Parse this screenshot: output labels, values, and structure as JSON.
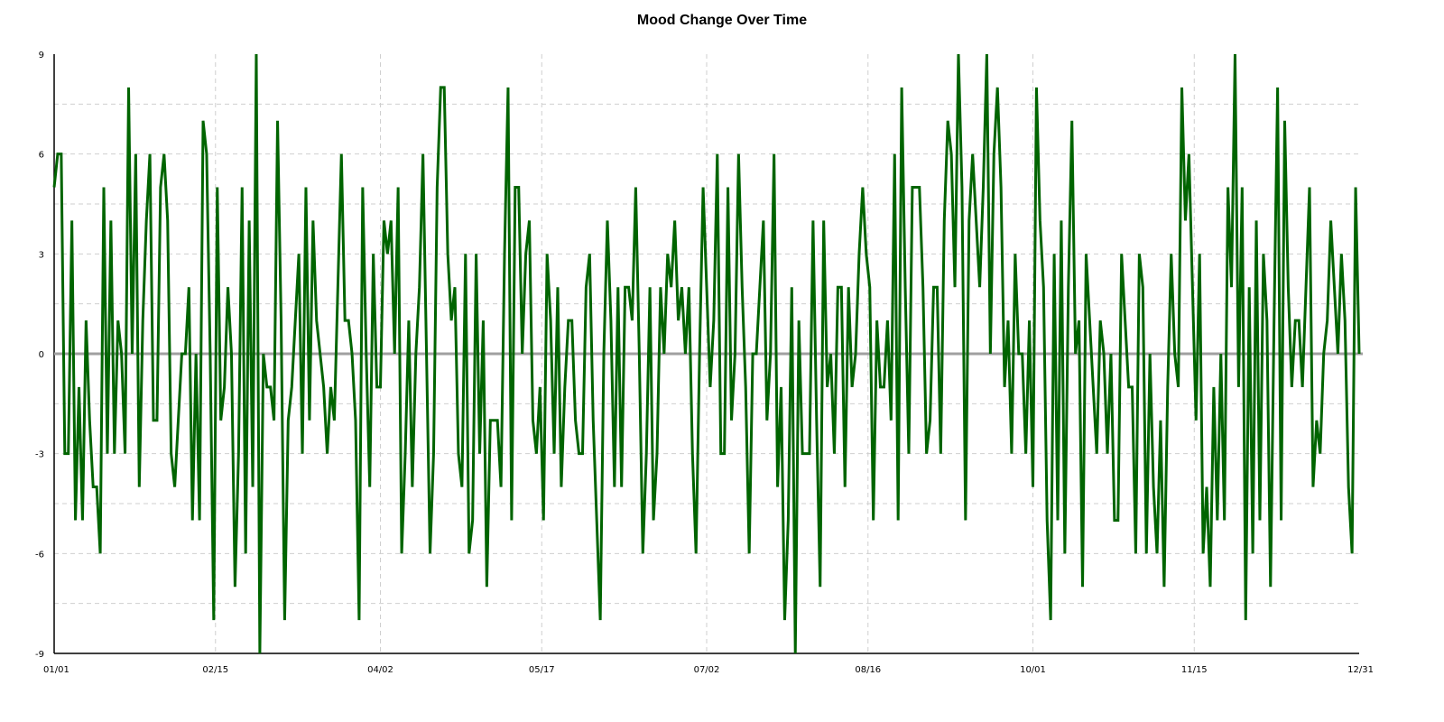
{
  "chart_data": {
    "type": "line",
    "title": "Mood Change Over Time",
    "xlabel": "",
    "ylabel": "",
    "ylim": [
      -9,
      9
    ],
    "y_ticks": [
      -9,
      -6,
      -3,
      0,
      3,
      6,
      9
    ],
    "x_ticks": [
      {
        "label": "01/01",
        "day": 0
      },
      {
        "label": "02/15",
        "day": 45
      },
      {
        "label": "04/02",
        "day": 91
      },
      {
        "label": "05/17",
        "day": 136
      },
      {
        "label": "07/02",
        "day": 182
      },
      {
        "label": "08/16",
        "day": 227
      },
      {
        "label": "10/01",
        "day": 273
      },
      {
        "label": "11/15",
        "day": 318
      },
      {
        "label": "12/31",
        "day": 364
      }
    ],
    "grid": true,
    "zero_line": true,
    "line_color": "#006400",
    "zero_line_color": "#a0a0a0",
    "series": [
      {
        "name": "",
        "values": [
          5,
          6,
          6,
          -3,
          -3,
          4,
          -5,
          -1,
          -5,
          1,
          -2,
          -4,
          -4,
          -6,
          5,
          -3,
          4,
          -3,
          1,
          0,
          -3,
          8,
          0,
          6,
          -4,
          1,
          4,
          6,
          -2,
          -2,
          5,
          6,
          4,
          -3,
          -4,
          -2,
          0,
          0,
          2,
          -5,
          0,
          -5,
          7,
          6,
          0,
          -8,
          5,
          -2,
          -1,
          2,
          0,
          -7,
          -3,
          5,
          -6,
          4,
          -4,
          9,
          -9,
          0,
          -1,
          -1,
          -2,
          7,
          1,
          -8,
          -2,
          -1,
          1,
          3,
          -3,
          5,
          -2,
          4,
          1,
          0,
          -1,
          -3,
          -1,
          -2,
          2,
          6,
          1,
          1,
          0,
          -2,
          -8,
          5,
          0,
          -4,
          3,
          -1,
          -1,
          4,
          3,
          4,
          0,
          5,
          -6,
          -3,
          1,
          -4,
          0,
          2,
          6,
          0,
          -6,
          -3,
          5,
          8,
          8,
          3,
          1,
          2,
          -3,
          -4,
          3,
          -6,
          -5,
          3,
          -3,
          1,
          -7,
          -2,
          -2,
          -2,
          -4,
          3,
          8,
          -5,
          5,
          5,
          0,
          3,
          4,
          -2,
          -3,
          -1,
          -5,
          3,
          1,
          -3,
          2,
          -4,
          -1,
          1,
          1,
          -2,
          -3,
          -3,
          2,
          3,
          -2,
          -5,
          -8,
          0,
          4,
          1,
          -4,
          2,
          -4,
          2,
          2,
          1,
          5,
          0,
          -6,
          -3,
          2,
          -5,
          -3,
          2,
          0,
          3,
          2,
          4,
          1,
          2,
          0,
          2,
          -3,
          -6,
          0,
          5,
          2,
          -1,
          1,
          6,
          -3,
          -3,
          5,
          -2,
          0,
          6,
          2,
          -1,
          -6,
          0,
          0,
          2,
          4,
          -2,
          0,
          6,
          -4,
          -1,
          -8,
          -5,
          2,
          -9,
          1,
          -3,
          -3,
          -3,
          4,
          -2,
          -7,
          4,
          -1,
          0,
          -3,
          2,
          2,
          -4,
          2,
          -1,
          0,
          3,
          5,
          3,
          2,
          -5,
          1,
          -1,
          -1,
          1,
          -2,
          6,
          -5,
          8,
          2,
          -3,
          5,
          5,
          5,
          2,
          -3,
          -2,
          2,
          2,
          -3,
          4,
          7,
          6,
          2,
          9,
          5,
          -5,
          4,
          6,
          4,
          2,
          5,
          9,
          0,
          6,
          8,
          5,
          -1,
          1,
          -3,
          3,
          0,
          0,
          -3,
          1,
          -4,
          8,
          4,
          2,
          -5,
          -8,
          3,
          -5,
          4,
          -6,
          2,
          7,
          0,
          1,
          -7,
          3,
          1,
          -1,
          -3,
          1,
          0,
          -3,
          0,
          -5,
          -5,
          3,
          1,
          -1,
          -1,
          -6,
          3,
          2,
          -6,
          0,
          -4,
          -6,
          -2,
          -7,
          -1,
          3,
          0,
          -1,
          8,
          4,
          6,
          2,
          -2,
          3,
          -6,
          -4,
          -7,
          -1,
          -5,
          0,
          -5,
          5,
          2,
          9,
          -1,
          5,
          -8,
          2,
          -6,
          4,
          -5,
          3,
          1,
          -7,
          1,
          8,
          -5,
          7,
          2,
          -1,
          1,
          1,
          -1,
          2,
          5,
          -4,
          -2,
          -3,
          0,
          1,
          4,
          2,
          0,
          3,
          1,
          -4,
          -6,
          5,
          0
        ]
      }
    ]
  }
}
